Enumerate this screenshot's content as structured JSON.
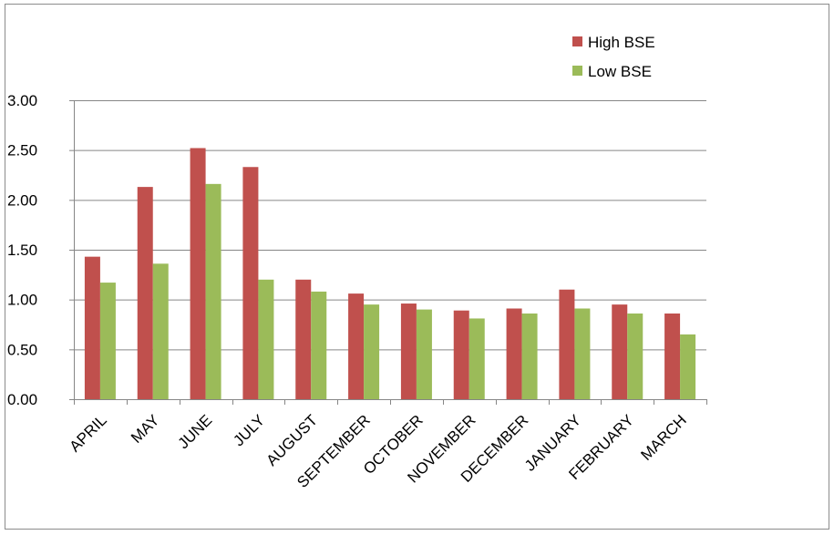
{
  "chart_data": {
    "type": "bar",
    "title": "",
    "xlabel": "",
    "ylabel": "",
    "categories": [
      "APRIL",
      "MAY",
      "JUNE",
      "JULY",
      "AUGUST",
      "SEPTEMBER",
      "OCTOBER",
      "NOVEMBER",
      "DECEMBER",
      "JANUARY",
      "FEBRUARY",
      "MARCH"
    ],
    "series": [
      {
        "name": "High BSE",
        "color": "#c0504d",
        "values": [
          1.43,
          2.13,
          2.52,
          2.33,
          1.2,
          1.06,
          0.96,
          0.89,
          0.91,
          1.1,
          0.95,
          0.86
        ]
      },
      {
        "name": "Low BSE",
        "color": "#9bbb59",
        "values": [
          1.17,
          1.36,
          2.16,
          1.2,
          1.08,
          0.95,
          0.9,
          0.81,
          0.86,
          0.91,
          0.86,
          0.65
        ]
      }
    ],
    "ylim": [
      0,
      3
    ],
    "yticks": [
      "0.00",
      "0.50",
      "1.00",
      "1.50",
      "2.00",
      "2.50",
      "3.00"
    ],
    "grid": true,
    "legend_position": "top-right",
    "gridline_color": "#868686"
  }
}
